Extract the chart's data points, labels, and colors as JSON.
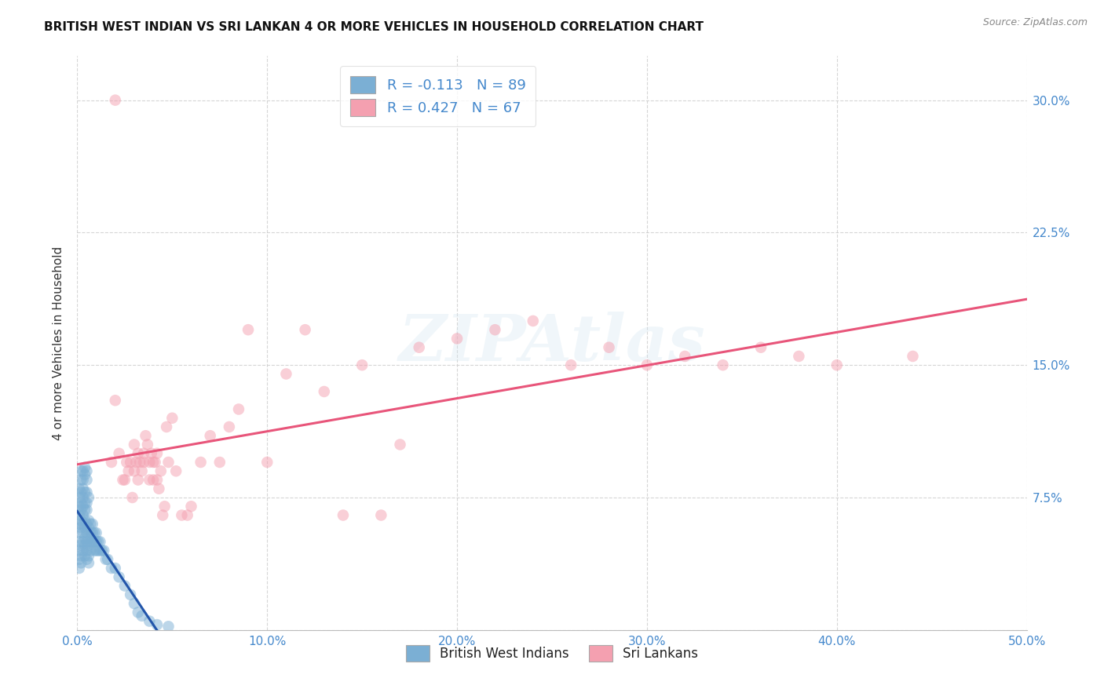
{
  "title": "BRITISH WEST INDIAN VS SRI LANKAN 4 OR MORE VEHICLES IN HOUSEHOLD CORRELATION CHART",
  "source": "Source: ZipAtlas.com",
  "ylabel": "4 or more Vehicles in Household",
  "xmin": 0.0,
  "xmax": 0.5,
  "ymin": 0.0,
  "ymax": 0.325,
  "xticks": [
    0.0,
    0.1,
    0.2,
    0.3,
    0.4,
    0.5
  ],
  "yticks": [
    0.0,
    0.075,
    0.15,
    0.225,
    0.3
  ],
  "R_blue": -0.113,
  "N_blue": 89,
  "R_pink": 0.427,
  "N_pink": 67,
  "label_blue": "British West Indians",
  "label_pink": "Sri Lankans",
  "color_blue_scatter": "#7BAFD4",
  "color_pink_scatter": "#F4A0B0",
  "color_blue_line": "#2255AA",
  "color_pink_line": "#E8557A",
  "color_blue_dashed": "#99BBDD",
  "tick_color": "#4488CC",
  "watermark_text": "ZIPAtlas",
  "blue_x": [
    0.001,
    0.001,
    0.001,
    0.001,
    0.001,
    0.001,
    0.001,
    0.001,
    0.001,
    0.001,
    0.002,
    0.002,
    0.002,
    0.002,
    0.002,
    0.002,
    0.002,
    0.002,
    0.002,
    0.002,
    0.003,
    0.003,
    0.003,
    0.003,
    0.003,
    0.003,
    0.003,
    0.003,
    0.003,
    0.003,
    0.004,
    0.004,
    0.004,
    0.004,
    0.004,
    0.004,
    0.004,
    0.004,
    0.004,
    0.004,
    0.005,
    0.005,
    0.005,
    0.005,
    0.005,
    0.005,
    0.005,
    0.005,
    0.005,
    0.005,
    0.006,
    0.006,
    0.006,
    0.006,
    0.006,
    0.006,
    0.006,
    0.007,
    0.007,
    0.007,
    0.007,
    0.008,
    0.008,
    0.008,
    0.009,
    0.009,
    0.009,
    0.01,
    0.01,
    0.01,
    0.011,
    0.011,
    0.012,
    0.012,
    0.013,
    0.014,
    0.015,
    0.016,
    0.018,
    0.02,
    0.022,
    0.025,
    0.028,
    0.03,
    0.032,
    0.034,
    0.038,
    0.042,
    0.048
  ],
  "blue_y": [
    0.055,
    0.06,
    0.065,
    0.07,
    0.05,
    0.045,
    0.04,
    0.035,
    0.08,
    0.075,
    0.058,
    0.062,
    0.068,
    0.072,
    0.048,
    0.042,
    0.038,
    0.085,
    0.09,
    0.078,
    0.055,
    0.06,
    0.065,
    0.07,
    0.05,
    0.045,
    0.08,
    0.085,
    0.09,
    0.075,
    0.058,
    0.062,
    0.068,
    0.052,
    0.048,
    0.042,
    0.088,
    0.092,
    0.078,
    0.072,
    0.055,
    0.06,
    0.05,
    0.045,
    0.04,
    0.085,
    0.09,
    0.078,
    0.072,
    0.068,
    0.052,
    0.058,
    0.062,
    0.048,
    0.042,
    0.038,
    0.075,
    0.05,
    0.055,
    0.06,
    0.045,
    0.05,
    0.055,
    0.06,
    0.045,
    0.05,
    0.055,
    0.045,
    0.05,
    0.055,
    0.045,
    0.05,
    0.045,
    0.05,
    0.045,
    0.045,
    0.04,
    0.04,
    0.035,
    0.035,
    0.03,
    0.025,
    0.02,
    0.015,
    0.01,
    0.008,
    0.005,
    0.003,
    0.002
  ],
  "pink_x": [
    0.018,
    0.02,
    0.022,
    0.024,
    0.025,
    0.026,
    0.027,
    0.028,
    0.029,
    0.03,
    0.03,
    0.031,
    0.032,
    0.032,
    0.033,
    0.034,
    0.035,
    0.035,
    0.036,
    0.037,
    0.038,
    0.038,
    0.039,
    0.04,
    0.04,
    0.041,
    0.042,
    0.042,
    0.043,
    0.044,
    0.045,
    0.046,
    0.047,
    0.048,
    0.05,
    0.052,
    0.055,
    0.058,
    0.06,
    0.065,
    0.07,
    0.075,
    0.08,
    0.085,
    0.09,
    0.1,
    0.11,
    0.12,
    0.13,
    0.14,
    0.15,
    0.16,
    0.17,
    0.18,
    0.2,
    0.22,
    0.24,
    0.26,
    0.28,
    0.3,
    0.32,
    0.34,
    0.36,
    0.38,
    0.4,
    0.44,
    0.02
  ],
  "pink_y": [
    0.095,
    0.13,
    0.1,
    0.085,
    0.085,
    0.095,
    0.09,
    0.095,
    0.075,
    0.09,
    0.105,
    0.095,
    0.1,
    0.085,
    0.095,
    0.09,
    0.1,
    0.095,
    0.11,
    0.105,
    0.085,
    0.095,
    0.1,
    0.095,
    0.085,
    0.095,
    0.085,
    0.1,
    0.08,
    0.09,
    0.065,
    0.07,
    0.115,
    0.095,
    0.12,
    0.09,
    0.065,
    0.065,
    0.07,
    0.095,
    0.11,
    0.095,
    0.115,
    0.125,
    0.17,
    0.095,
    0.145,
    0.17,
    0.135,
    0.065,
    0.15,
    0.065,
    0.105,
    0.16,
    0.165,
    0.17,
    0.175,
    0.15,
    0.16,
    0.15,
    0.155,
    0.15,
    0.16,
    0.155,
    0.15,
    0.155,
    0.3
  ]
}
